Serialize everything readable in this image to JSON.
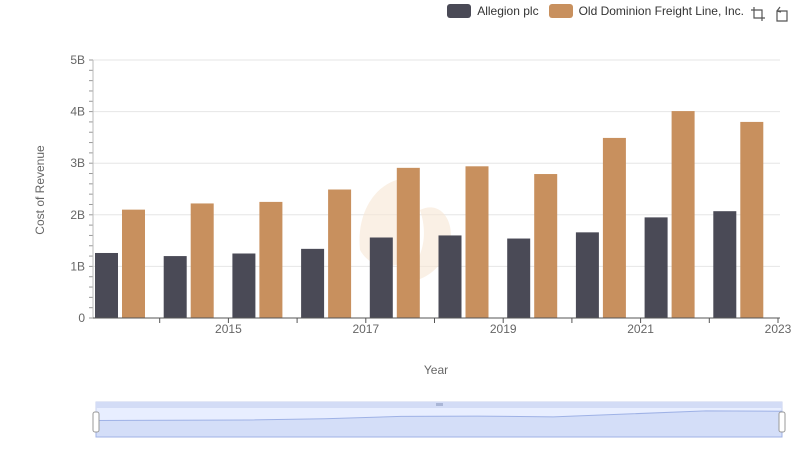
{
  "legend": [
    {
      "name": "Allegion plc",
      "color": "#4a4a56"
    },
    {
      "name": "Old Dominion Freight Line, Inc.",
      "color": "#c8905e"
    }
  ],
  "toolbar": {
    "icons": [
      "crop-icon",
      "reset-icon"
    ]
  },
  "chart_data": {
    "type": "bar",
    "title": "",
    "xlabel": "Year",
    "ylabel": "Cost of Revenue",
    "ylim": [
      0,
      5000000000
    ],
    "yticks": [
      "0",
      "1B",
      "2B",
      "3B",
      "4B",
      "5B"
    ],
    "categories": [
      2014,
      2015,
      2016,
      2017,
      2018,
      2019,
      2020,
      2021,
      2022,
      2023
    ],
    "xtick_labels": [
      "2015",
      "2017",
      "2019",
      "2021",
      "2023"
    ],
    "series": [
      {
        "name": "Allegion plc",
        "color": "#4a4a56",
        "values": [
          1260000000,
          1200000000,
          1250000000,
          1340000000,
          1560000000,
          1600000000,
          1540000000,
          1660000000,
          1950000000,
          2070000000
        ]
      },
      {
        "name": "Old Dominion Freight Line, Inc.",
        "color": "#c8905e",
        "values": [
          2100000000,
          2220000000,
          2250000000,
          2490000000,
          2910000000,
          2940000000,
          2790000000,
          3490000000,
          4010000000,
          3800000000
        ]
      }
    ],
    "grid": true,
    "legend_position": "top-right"
  }
}
